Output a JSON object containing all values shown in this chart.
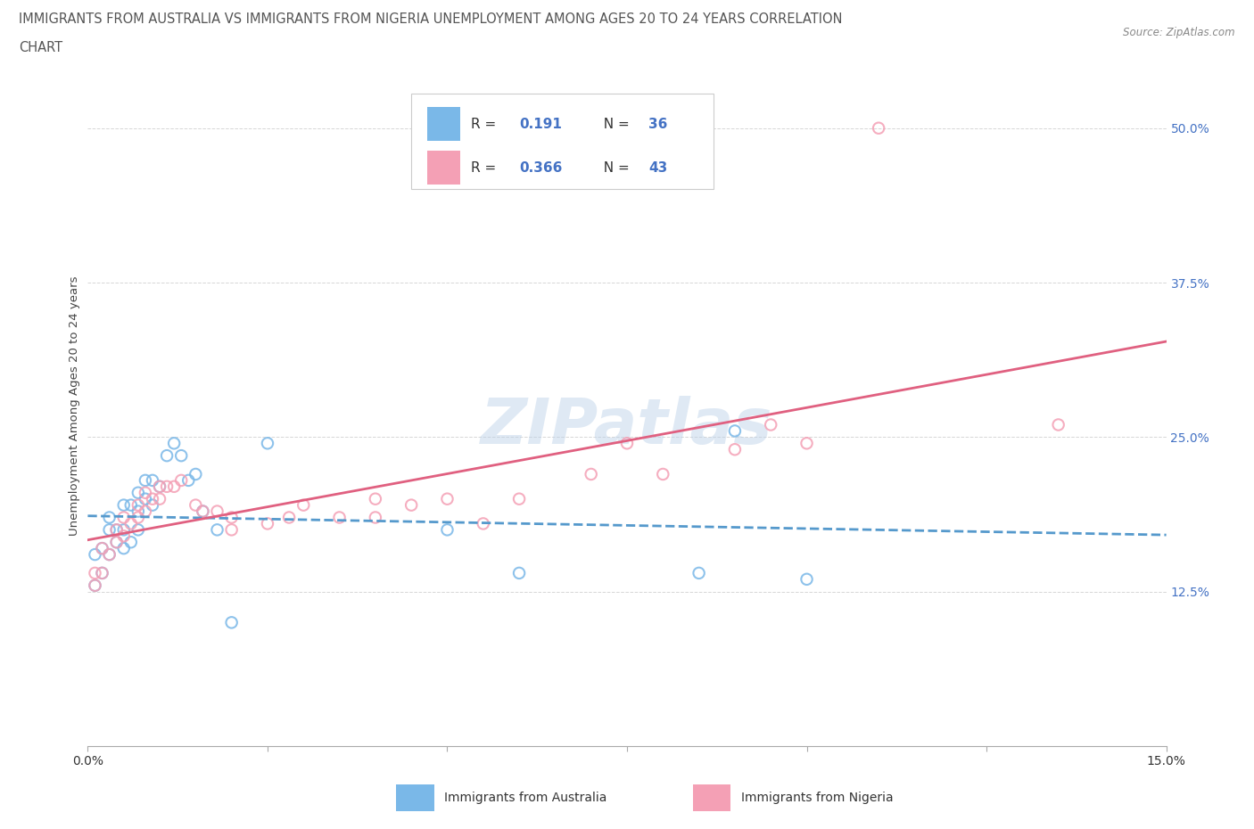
{
  "title_line1": "IMMIGRANTS FROM AUSTRALIA VS IMMIGRANTS FROM NIGERIA UNEMPLOYMENT AMONG AGES 20 TO 24 YEARS CORRELATION",
  "title_line2": "CHART",
  "source": "Source: ZipAtlas.com",
  "ylabel": "Unemployment Among Ages 20 to 24 years",
  "xlim": [
    0.0,
    0.15
  ],
  "ylim": [
    0.0,
    0.55
  ],
  "yticks": [
    0.0,
    0.125,
    0.25,
    0.375,
    0.5
  ],
  "ytick_labels": [
    "",
    "12.5%",
    "25.0%",
    "37.5%",
    "50.0%"
  ],
  "xticks": [
    0.0,
    0.025,
    0.05,
    0.075,
    0.1,
    0.125,
    0.15
  ],
  "color_australia": "#7ab8e8",
  "color_nigeria": "#f4a0b5",
  "trendline_australia_color": "#5599cc",
  "trendline_nigeria_color": "#e06080",
  "R_australia": "0.191",
  "N_australia": "36",
  "R_nigeria": "0.366",
  "N_nigeria": "43",
  "watermark": "ZIPatlas",
  "background_color": "#ffffff",
  "grid_color": "#cccccc",
  "aus_x": [
    0.001,
    0.001,
    0.002,
    0.002,
    0.003,
    0.003,
    0.003,
    0.004,
    0.004,
    0.005,
    0.005,
    0.005,
    0.006,
    0.006,
    0.007,
    0.007,
    0.007,
    0.008,
    0.008,
    0.009,
    0.009,
    0.01,
    0.011,
    0.012,
    0.013,
    0.014,
    0.015,
    0.016,
    0.018,
    0.02,
    0.025,
    0.05,
    0.06,
    0.085,
    0.09,
    0.1
  ],
  "aus_y": [
    0.13,
    0.155,
    0.14,
    0.16,
    0.155,
    0.175,
    0.185,
    0.165,
    0.175,
    0.16,
    0.175,
    0.195,
    0.165,
    0.195,
    0.175,
    0.19,
    0.205,
    0.2,
    0.215,
    0.195,
    0.215,
    0.21,
    0.235,
    0.245,
    0.235,
    0.215,
    0.22,
    0.19,
    0.175,
    0.1,
    0.245,
    0.175,
    0.14,
    0.14,
    0.255,
    0.135
  ],
  "nga_x": [
    0.001,
    0.001,
    0.002,
    0.002,
    0.003,
    0.004,
    0.004,
    0.005,
    0.005,
    0.006,
    0.007,
    0.007,
    0.008,
    0.008,
    0.009,
    0.01,
    0.01,
    0.011,
    0.012,
    0.013,
    0.015,
    0.016,
    0.018,
    0.02,
    0.02,
    0.025,
    0.028,
    0.03,
    0.035,
    0.04,
    0.04,
    0.045,
    0.05,
    0.055,
    0.06,
    0.07,
    0.075,
    0.08,
    0.09,
    0.095,
    0.1,
    0.11,
    0.135
  ],
  "nga_y": [
    0.13,
    0.14,
    0.14,
    0.16,
    0.155,
    0.165,
    0.175,
    0.17,
    0.185,
    0.18,
    0.185,
    0.195,
    0.19,
    0.205,
    0.2,
    0.2,
    0.21,
    0.21,
    0.21,
    0.215,
    0.195,
    0.19,
    0.19,
    0.185,
    0.175,
    0.18,
    0.185,
    0.195,
    0.185,
    0.185,
    0.2,
    0.195,
    0.2,
    0.18,
    0.2,
    0.22,
    0.245,
    0.22,
    0.24,
    0.26,
    0.245,
    0.5,
    0.26
  ],
  "legend_R_color": "#4472c4",
  "legend_N_color": "#4472c4",
  "legend_text_color": "#333333",
  "yaxis_label_color": "#4472c4",
  "title_color": "#555555"
}
